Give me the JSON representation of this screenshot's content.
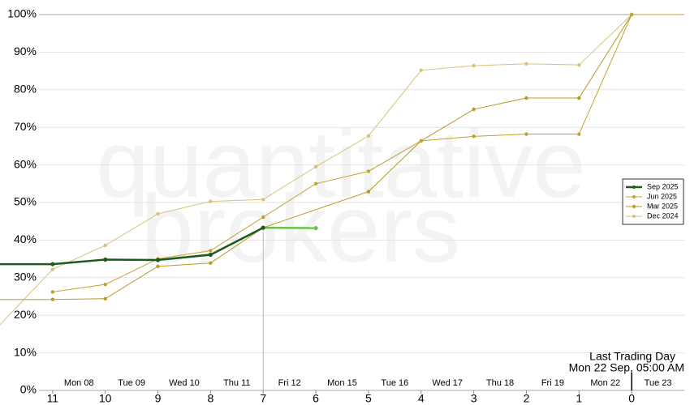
{
  "chart_data": {
    "type": "line",
    "watermark": [
      "quantitative",
      "brokers"
    ],
    "xlim": [
      12,
      -1
    ],
    "xticks": [
      11,
      10,
      9,
      8,
      7,
      6,
      5,
      4,
      3,
      2,
      1,
      0
    ],
    "day_labels": [
      "Mon 08",
      "Tue 09",
      "Wed 10",
      "Thu 11",
      "Fri 12",
      "Mon 15",
      "Tue 16",
      "Wed 17",
      "Thu 18",
      "Fri 19",
      "Mon 22",
      "Tue 23"
    ],
    "ylim": [
      0,
      100
    ],
    "yticks": [
      {
        "value": 0,
        "label": "0%"
      },
      {
        "value": 10,
        "label": "10%"
      },
      {
        "value": 20,
        "label": "20%"
      },
      {
        "value": 30,
        "label": "30%"
      },
      {
        "value": 40,
        "label": "40%"
      },
      {
        "value": 50,
        "label": "50%"
      },
      {
        "value": 60,
        "label": "60%"
      },
      {
        "value": 70,
        "label": "70%"
      },
      {
        "value": 80,
        "label": "80%"
      },
      {
        "value": 90,
        "label": "90%"
      },
      {
        "value": 100,
        "label": "100%"
      }
    ],
    "grid": true,
    "legend": "right",
    "crosshair_x": 7,
    "annotation": {
      "x": 0,
      "lines": [
        "Last Trading Day",
        "Mon 22 Sep, 05:00 AM"
      ]
    },
    "series": [
      {
        "name": "Sep 2025",
        "color": "#1e5a1e",
        "extension_color": "#6cbf4a",
        "width": 2.5,
        "x": [
          12,
          11,
          10,
          9,
          8,
          7,
          6
        ],
        "values": [
          33.6,
          33.6,
          34.8,
          34.7,
          36.1,
          43.3,
          43.2
        ]
      },
      {
        "name": "Jun 2025",
        "color": "#c2a22e",
        "width": 1,
        "x": [
          11,
          10,
          9,
          8,
          7,
          6,
          5,
          4,
          3,
          2,
          1,
          0,
          -1
        ],
        "values": [
          26.2,
          28.2,
          35.0,
          37.2,
          46.1,
          55.0,
          58.3,
          66.4,
          67.6,
          68.2,
          68.2,
          100,
          100
        ]
      },
      {
        "name": "Mar 2025",
        "color": "#b89a22",
        "width": 1,
        "x": [
          12,
          11,
          10,
          9,
          8,
          7,
          5,
          4,
          3,
          2,
          1,
          0,
          -1
        ],
        "values": [
          24.2,
          24.2,
          24.4,
          33.0,
          33.9,
          43.3,
          52.9,
          66.4,
          74.8,
          77.8,
          77.8,
          100,
          100
        ]
      },
      {
        "name": "Dec 2024",
        "color": "#d6c27a",
        "width": 1,
        "x": [
          12,
          11,
          10,
          9,
          8,
          7,
          6,
          5,
          4,
          3,
          2,
          1,
          0,
          -1
        ],
        "values": [
          17.5,
          32.2,
          38.6,
          47.0,
          50.3,
          50.8,
          59.5,
          67.7,
          85.2,
          86.4,
          86.9,
          86.6,
          100,
          100
        ]
      }
    ]
  }
}
